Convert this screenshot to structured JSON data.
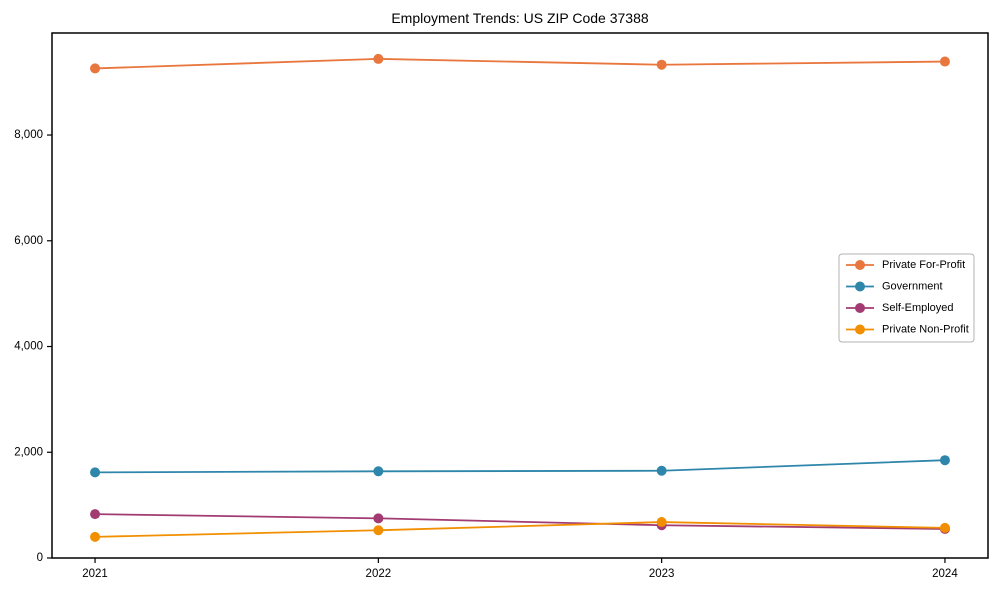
{
  "chart_data": {
    "type": "line",
    "title": "Employment Trends: US ZIP Code 37388",
    "xlabel": "",
    "ylabel": "",
    "categories": [
      "2021",
      "2022",
      "2023",
      "2024"
    ],
    "series": [
      {
        "name": "Private For-Profit",
        "color": "#E8763D",
        "values": [
          9260,
          9440,
          9330,
          9390
        ]
      },
      {
        "name": "Government",
        "color": "#2E86AB",
        "values": [
          1620,
          1640,
          1650,
          1850
        ]
      },
      {
        "name": "Self-Employed",
        "color": "#A23B72",
        "values": [
          830,
          750,
          620,
          550
        ]
      },
      {
        "name": "Private Non-Profit",
        "color": "#F18F01",
        "values": [
          400,
          525,
          680,
          570
        ]
      }
    ],
    "y_ticks": [
      0,
      2000,
      4000,
      6000,
      8000
    ],
    "y_tick_labels": [
      "0",
      "2,000",
      "4,000",
      "6,000",
      "8,000"
    ],
    "ylim": [
      0,
      9930
    ],
    "grid": false,
    "legend_position": "center-right",
    "axis_color": "#000000",
    "legend_border_color": "#b3b3b3",
    "background_color": "#ffffff"
  }
}
